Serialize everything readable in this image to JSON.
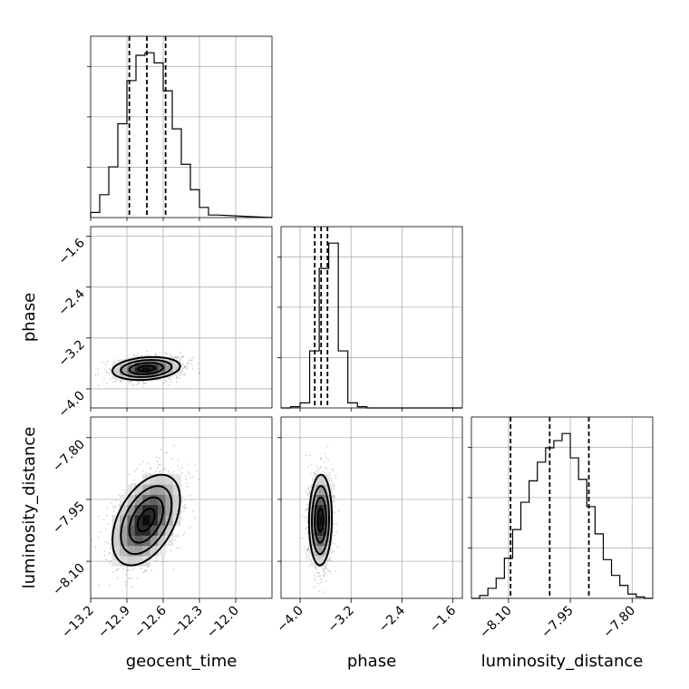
{
  "chart_data": {
    "type": "corner",
    "parameters": [
      "geocent_time",
      "phase",
      "luminosity_distance"
    ],
    "axis_ranges": {
      "geocent_time": [
        -13.2,
        -11.7
      ],
      "phase": [
        -4.3,
        -1.45
      ],
      "luminosity_distance": [
        -8.19,
        -7.75
      ]
    },
    "ticks": {
      "geocent_time": {
        "values": [
          -13.2,
          -12.9,
          -12.6,
          -12.3,
          -12.0
        ],
        "labels": [
          "−13.2",
          "−12.9",
          "−12.6",
          "−12.3",
          "−12.0"
        ]
      },
      "phase": {
        "values": [
          -4.0,
          -3.2,
          -2.4,
          -1.6
        ],
        "labels": [
          "−4.0",
          "−3.2",
          "−2.4",
          "−1.6"
        ]
      },
      "luminosity_distance": {
        "values": [
          -8.1,
          -7.95,
          -7.8
        ],
        "labels": [
          "−8.10",
          "−7.95",
          "−7.80"
        ]
      }
    },
    "grid": true,
    "histograms": {
      "geocent_time": {
        "edges": [
          -13.2,
          -13.125,
          -13.05,
          -12.975,
          -12.9,
          -12.825,
          -12.75,
          -12.675,
          -12.6,
          -12.525,
          -12.45,
          -12.375,
          -12.3,
          -12.225,
          -12.15
        ],
        "counts": [
          2,
          9,
          20,
          37,
          54,
          64,
          65,
          61,
          50,
          35,
          21,
          11,
          4,
          1
        ]
      },
      "phase": {
        "edges": [
          -4.3,
          -4.15,
          -4.0,
          -3.85,
          -3.7,
          -3.55,
          -3.4,
          -3.25,
          -3.1,
          -2.95,
          -2.8
        ],
        "counts": [
          0,
          1,
          4,
          45,
          110,
          130,
          45,
          4,
          1,
          0
        ]
      },
      "luminosity_distance": {
        "edges": [
          -8.19,
          -8.17,
          -8.15,
          -8.13,
          -8.11,
          -8.09,
          -8.07,
          -8.05,
          -8.03,
          -8.01,
          -7.99,
          -7.97,
          -7.95,
          -7.93,
          -7.91,
          -7.89,
          -7.87,
          -7.85,
          -7.83,
          -7.81,
          -7.79,
          -7.77,
          -7.75
        ],
        "counts": [
          0,
          2,
          7,
          14,
          28,
          48,
          67,
          82,
          95,
          105,
          110,
          115,
          98,
          83,
          64,
          45,
          27,
          16,
          9,
          3,
          1,
          0
        ]
      }
    },
    "quantiles": {
      "geocent_time": [
        -12.88,
        -12.735,
        -12.58
      ],
      "phase": [
        -3.77,
        -3.67,
        -3.57
      ],
      "luminosity_distance": [
        -8.095,
        -8.0,
        -7.905
      ]
    },
    "posterior_2d": [
      {
        "x": "geocent_time",
        "y": "phase",
        "mean": [
          -12.74,
          -3.68
        ],
        "std": [
          0.14,
          0.09
        ],
        "corr": 0.2
      },
      {
        "x": "geocent_time",
        "y": "luminosity_distance",
        "mean": [
          -12.74,
          -8.0
        ],
        "std": [
          0.14,
          0.055
        ],
        "corr": 0.45
      },
      {
        "x": "phase",
        "y": "luminosity_distance",
        "mean": [
          -3.68,
          -8.0
        ],
        "std": [
          0.09,
          0.055
        ],
        "corr": 0.05
      }
    ]
  }
}
